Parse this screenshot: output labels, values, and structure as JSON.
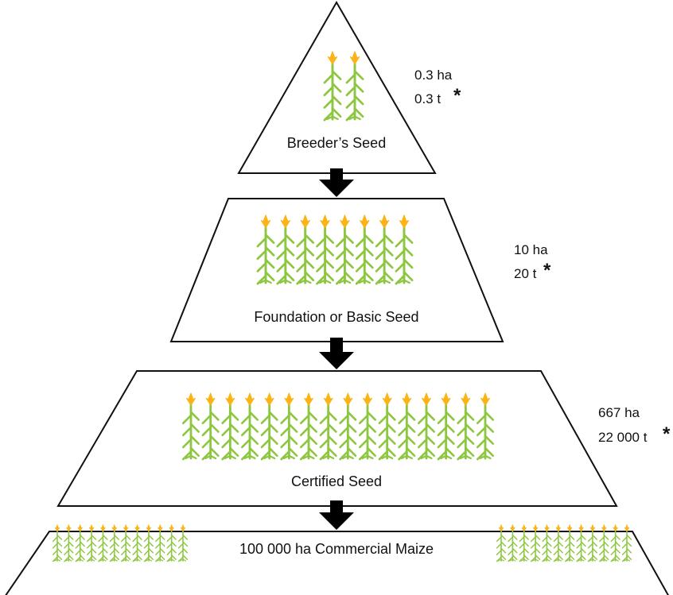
{
  "colors": {
    "stalk": "#8dc63f",
    "tassel": "#fbb316",
    "outline": "#111111",
    "arrow": "#000000"
  },
  "icons": {
    "plant": "maize-plant-icon",
    "arrow": "down-arrow-icon"
  },
  "tiers": [
    {
      "name": "Breeder’s Seed",
      "area": "0.3 ha",
      "yield": "0.3 t",
      "marker": "*",
      "plants": 2
    },
    {
      "name": "Foundation or Basic Seed",
      "area": "10 ha",
      "yield": "20 t",
      "marker": "*",
      "plants": 8
    },
    {
      "name": "Certified Seed",
      "area": "667 ha",
      "yield": "22 000 t",
      "marker": "*",
      "plants": 16
    }
  ],
  "commercial": {
    "label": "100 000 ha Commercial Maize",
    "plants_left": 12,
    "plants_right": 12
  }
}
